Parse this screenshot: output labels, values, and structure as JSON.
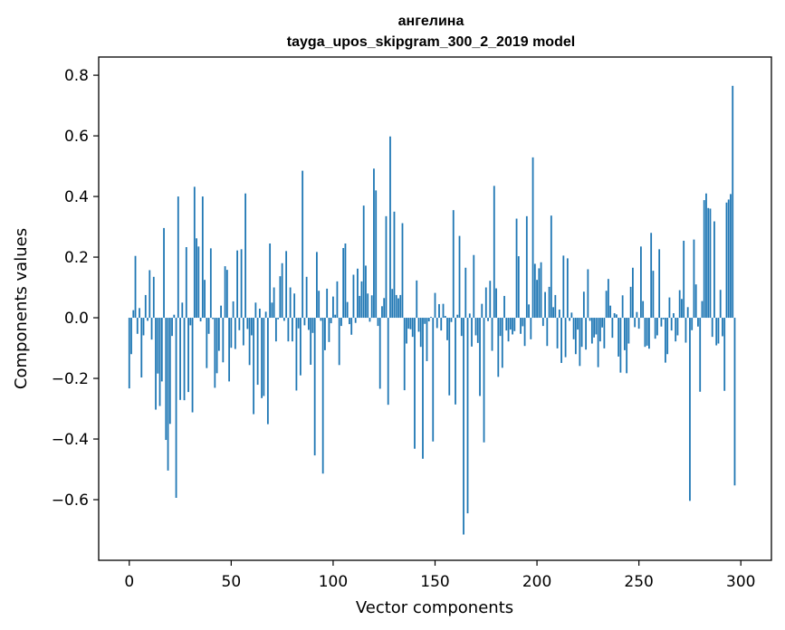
{
  "chart_data": {
    "type": "bar",
    "title": "ангелина",
    "subtitle": "tayga_upos_skipgram_300_2_2019 model",
    "xlabel": "Vector components",
    "ylabel": "Components values",
    "xlim": [
      -15,
      315
    ],
    "ylim": [
      -0.8,
      0.86
    ],
    "x_ticks": [
      0,
      50,
      100,
      150,
      200,
      250,
      300
    ],
    "x_tick_labels": [
      "0",
      "50",
      "100",
      "150",
      "200",
      "250",
      "300"
    ],
    "y_ticks": [
      -0.6,
      -0.4,
      -0.2,
      0.0,
      0.2,
      0.4,
      0.6,
      0.8
    ],
    "y_tick_labels": [
      "−0.6",
      "−0.4",
      "−0.2",
      "0.0",
      "0.2",
      "0.4",
      "0.6",
      "0.8"
    ],
    "bar_color": "#1f77b4",
    "values": [
      -0.233,
      -0.12,
      0.025,
      0.204,
      -0.053,
      0.032,
      -0.197,
      -0.058,
      0.075,
      -0.01,
      0.157,
      -0.072,
      0.135,
      -0.303,
      -0.184,
      -0.291,
      -0.21,
      0.296,
      -0.403,
      -0.504,
      -0.35,
      -0.06,
      0.01,
      -0.594,
      0.4,
      -0.271,
      0.05,
      -0.272,
      0.233,
      -0.245,
      -0.025,
      -0.312,
      0.432,
      0.262,
      0.235,
      -0.012,
      0.4,
      0.125,
      -0.166,
      -0.053,
      0.229,
      -0.004,
      -0.231,
      -0.183,
      -0.109,
      0.04,
      -0.147,
      0.17,
      0.158,
      -0.21,
      -0.099,
      0.054,
      -0.103,
      0.222,
      -0.041,
      0.226,
      -0.091,
      0.41,
      -0.037,
      -0.156,
      -0.058,
      -0.318,
      0.05,
      -0.221,
      0.03,
      -0.265,
      -0.258,
      0.02,
      -0.351,
      0.245,
      0.05,
      0.1,
      -0.078,
      -0.005,
      0.137,
      0.18,
      -0.01,
      0.22,
      -0.078,
      0.1,
      -0.078,
      0.08,
      -0.24,
      -0.035,
      -0.19,
      0.485,
      -0.025,
      0.135,
      -0.04,
      -0.155,
      -0.05,
      -0.454,
      0.217,
      0.089,
      -0.01,
      -0.514,
      -0.107,
      0.096,
      -0.08,
      -0.018,
      0.07,
      0.01,
      0.12,
      -0.156,
      -0.027,
      0.23,
      0.245,
      0.052,
      -0.021,
      -0.056,
      0.142,
      -0.017,
      0.162,
      0.072,
      0.12,
      0.37,
      0.172,
      0.08,
      -0.013,
      0.074,
      0.492,
      0.42,
      -0.027,
      -0.234,
      0.038,
      0.065,
      0.335,
      -0.287,
      0.598,
      0.095,
      0.35,
      0.075,
      0.064,
      0.075,
      0.312,
      -0.239,
      -0.085,
      -0.036,
      -0.038,
      -0.063,
      -0.432,
      0.123,
      -0.046,
      -0.096,
      -0.465,
      -0.02,
      -0.143,
      -0.012,
      0.003,
      -0.408,
      0.082,
      -0.034,
      0.045,
      -0.042,
      0.046,
      0.006,
      -0.074,
      -0.256,
      -0.014,
      0.355,
      -0.286,
      0.01,
      0.27,
      -0.06,
      -0.715,
      0.165,
      -0.645,
      0.014,
      -0.095,
      0.207,
      -0.058,
      -0.083,
      -0.258,
      0.046,
      -0.411,
      0.1,
      -0.011,
      0.122,
      -0.109,
      0.435,
      0.097,
      -0.195,
      -0.06,
      -0.165,
      0.072,
      -0.042,
      -0.078,
      -0.039,
      -0.055,
      -0.044,
      0.327,
      0.203,
      -0.053,
      -0.028,
      -0.093,
      0.335,
      0.044,
      -0.071,
      0.529,
      0.178,
      0.125,
      0.163,
      0.183,
      -0.027,
      0.085,
      -0.093,
      0.102,
      0.337,
      0.035,
      0.075,
      -0.101,
      0.027,
      -0.149,
      0.205,
      -0.13,
      0.196,
      -0.01,
      0.017,
      -0.071,
      -0.12,
      -0.039,
      -0.159,
      -0.096,
      0.086,
      -0.105,
      0.16,
      -0.01,
      -0.085,
      -0.065,
      -0.055,
      -0.163,
      -0.078,
      -0.032,
      -0.101,
      0.089,
      0.128,
      0.04,
      -0.066,
      0.015,
      0.011,
      -0.128,
      -0.181,
      0.074,
      -0.107,
      -0.183,
      -0.085,
      0.102,
      0.165,
      -0.031,
      0.019,
      -0.036,
      0.235,
      0.055,
      -0.096,
      -0.092,
      -0.102,
      0.28,
      0.155,
      -0.069,
      -0.058,
      0.226,
      -0.029,
      -0.005,
      -0.148,
      -0.12,
      0.067,
      -0.042,
      0.015,
      -0.078,
      -0.058,
      0.091,
      0.062,
      0.254,
      -0.082,
      0.035,
      -0.604,
      -0.041,
      0.258,
      0.11,
      -0.029,
      -0.244,
      0.055,
      0.388,
      0.41,
      0.362,
      0.36,
      -0.063,
      0.318,
      -0.091,
      -0.085,
      0.092,
      -0.061,
      -0.241,
      0.38,
      0.39,
      0.408,
      0.765,
      -0.553
    ]
  }
}
